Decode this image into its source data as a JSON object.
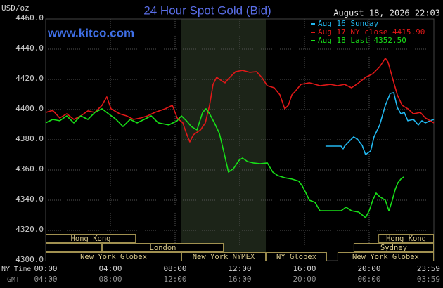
{
  "chart_data": {
    "type": "line",
    "title": "24 Hour Spot Gold (Bid)",
    "y_label": "USD/oz",
    "timestamp": "August 18, 2026 22:03",
    "source": "www.kitco.com",
    "x_label": "NY Time",
    "x2_label": "GMT",
    "grid": true,
    "legend": "top-right",
    "xlim": [
      0,
      24
    ],
    "ylim": [
      4300,
      4460
    ],
    "yticks": [
      {
        "value": 4300,
        "label": "4300.0"
      },
      {
        "value": 4320,
        "label": "4320.0"
      },
      {
        "value": 4340,
        "label": "4340.0"
      },
      {
        "value": 4360,
        "label": "4360.0"
      },
      {
        "value": 4380,
        "label": "4380.0"
      },
      {
        "value": 4400,
        "label": "4400.0"
      },
      {
        "value": 4420,
        "label": "4420.0"
      },
      {
        "value": 4440,
        "label": "4440.0"
      },
      {
        "value": 4460,
        "label": "4460.0"
      }
    ],
    "xticks": [
      {
        "value": 0,
        "label": "00:00"
      },
      {
        "value": 4,
        "label": "04:00"
      },
      {
        "value": 8,
        "label": "08:00"
      },
      {
        "value": 12,
        "label": "12:00"
      },
      {
        "value": 16,
        "label": "16:00"
      },
      {
        "value": 20,
        "label": "20:00"
      },
      {
        "value": 23.98,
        "label": "23:59"
      }
    ],
    "gmt_labels": [
      "04:00",
      "08:00",
      "12:00",
      "16:00",
      "20:00",
      "00:00",
      "03:59"
    ],
    "sessions": [
      {
        "label": "Hong Kong",
        "row": 1,
        "start": 0,
        "end": 5.57
      },
      {
        "label": "Hong Kong",
        "row": 1,
        "start": 20.57,
        "end": 24
      },
      {
        "row": 2,
        "start": 0,
        "end": 3.48
      },
      {
        "label": "London",
        "row": 2,
        "start": 3.48,
        "end": 11.0
      },
      {
        "label": "Sydney",
        "row": 2,
        "start": 19.04,
        "end": 24
      },
      {
        "label": "New York Globex",
        "row": 3,
        "start": 0,
        "end": 8.39
      },
      {
        "label": "New York NYMEX",
        "row": 3,
        "start": 8.39,
        "end": 13.61,
        "shaded": true
      },
      {
        "label": "NY Globex",
        "row": 3,
        "start": 13.61,
        "end": 17.39
      },
      {
        "label": "New York Globex",
        "row": 3,
        "start": 18.04,
        "end": 24
      }
    ],
    "series": [
      {
        "name": "Aug 16 Sunday",
        "color": "#22b8f0",
        "x": [
          17.3,
          18.26,
          18.39,
          18.48,
          19.04,
          19.26,
          19.57,
          19.78,
          20.09,
          20.3,
          20.65,
          21.0,
          21.3,
          21.52,
          21.74,
          21.96,
          22.17,
          22.39,
          22.74,
          23.04,
          23.26,
          23.48,
          23.78,
          24.0
        ],
        "values": [
          4375.8,
          4375.8,
          4374.0,
          4375.8,
          4381.9,
          4380.5,
          4376.3,
          4370.2,
          4372.6,
          4381.9,
          4389.8,
          4402.8,
          4410.7,
          4411.2,
          4401.4,
          4397.2,
          4398.1,
          4392.6,
          4393.5,
          4389.8,
          4392.6,
          4391.2,
          4392.6,
          4393.5
        ]
      },
      {
        "name": "Aug 17 NY close 4415.90",
        "color": "#e01818",
        "x": [
          0,
          0.43,
          0.87,
          1.3,
          1.74,
          2.17,
          2.61,
          3.04,
          3.48,
          3.78,
          4.04,
          4.57,
          5.0,
          5.43,
          5.87,
          6.3,
          6.74,
          7.39,
          7.83,
          8.13,
          8.48,
          8.7,
          8.91,
          9.13,
          9.57,
          9.87,
          10.13,
          10.35,
          10.57,
          10.87,
          11.09,
          11.3,
          11.74,
          12.17,
          12.61,
          13.04,
          13.35,
          13.7,
          14.13,
          14.48,
          14.78,
          15.0,
          15.22,
          15.43,
          15.78,
          16.3,
          16.96,
          17.61,
          18.04,
          18.48,
          18.91,
          19.35,
          19.78,
          20.22,
          20.65,
          21.0,
          21.17,
          21.43,
          21.74,
          22.04,
          22.39,
          22.74,
          23.17,
          23.48,
          23.78,
          24.0
        ],
        "values": [
          4398.1,
          4399.5,
          4394.4,
          4397.2,
          4393.5,
          4395.8,
          4399.1,
          4398.1,
          4402.8,
          4408.4,
          4400.5,
          4397.2,
          4395.8,
          4393.5,
          4394.4,
          4395.8,
          4398.1,
          4400.5,
          4402.8,
          4394.4,
          4391.2,
          4384.2,
          4378.6,
          4383.3,
          4386.5,
          4391.2,
          4402.8,
          4416.7,
          4421.4,
          4419.1,
          4417.7,
          4420.5,
          4425.1,
          4426.0,
          4424.7,
          4425.1,
          4421.4,
          4415.8,
          4414.4,
          4409.8,
          4400.5,
          4402.8,
          4409.8,
          4412.1,
          4416.7,
          4417.7,
          4415.8,
          4416.7,
          4415.8,
          4416.7,
          4414.4,
          4417.7,
          4421.4,
          4423.7,
          4428.4,
          4434.0,
          4431.4,
          4421.4,
          4409.8,
          4402.8,
          4400.5,
          4397.2,
          4398.1,
          4394.4,
          4392.6,
          4391.2
        ]
      },
      {
        "name": "Aug 18 Last 4352.50",
        "color": "#18e018",
        "x": [
          0,
          0.43,
          0.87,
          1.3,
          1.74,
          2.17,
          2.61,
          3.04,
          3.48,
          3.78,
          4.35,
          4.78,
          5.22,
          5.65,
          6.09,
          6.52,
          6.96,
          7.61,
          8.13,
          8.39,
          8.7,
          9.0,
          9.35,
          9.7,
          9.91,
          10.13,
          10.43,
          10.74,
          11.0,
          11.3,
          11.61,
          11.96,
          12.17,
          12.48,
          12.83,
          13.26,
          13.7,
          14.04,
          14.35,
          14.78,
          15.22,
          15.65,
          15.87,
          16.09,
          16.3,
          16.65,
          16.96,
          17.39,
          17.83,
          18.26,
          18.57,
          18.91,
          19.35,
          19.78,
          20.0,
          20.22,
          20.43,
          20.65,
          21.0,
          21.22,
          21.43,
          21.61,
          21.78,
          21.96,
          22.13
        ],
        "values": [
          4391.2,
          4393.5,
          4392.6,
          4395.8,
          4391.2,
          4395.8,
          4393.5,
          4398.1,
          4400.5,
          4398.1,
          4393.5,
          4388.8,
          4393.5,
          4391.2,
          4393.5,
          4395.8,
          4391.2,
          4389.8,
          4392.6,
          4395.8,
          4392.6,
          4388.8,
          4386.5,
          4398.1,
          4400.5,
          4397.2,
          4391.2,
          4384.2,
          4372.6,
          4358.6,
          4360.9,
          4366.5,
          4367.9,
          4365.6,
          4364.7,
          4364.2,
          4364.7,
          4358.6,
          4356.3,
          4354.9,
          4354.0,
          4352.6,
          4349.3,
          4344.7,
          4340.0,
          4338.6,
          4333.0,
          4333.0,
          4333.0,
          4333.0,
          4335.4,
          4333.0,
          4332.1,
          4328.4,
          4333.0,
          4340.0,
          4344.7,
          4342.3,
          4340.0,
          4333.0,
          4340.0,
          4347.0,
          4351.6,
          4354.0,
          4355.4
        ]
      }
    ]
  }
}
